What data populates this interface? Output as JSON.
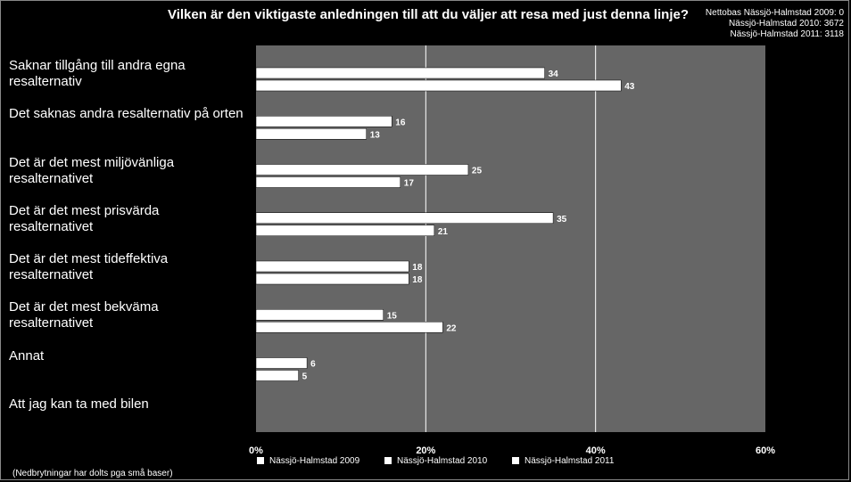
{
  "chart_data": {
    "type": "bar",
    "orientation": "horizontal",
    "title": "Vilken är den viktigaste anledningen till att du väljer att resa med just denna linje?",
    "categories": [
      "Saknar tillgång till andra egna resalternativ",
      "Det saknas andra resalternativ på orten",
      "Det är det mest miljövänliga resalternativet",
      "Det är det mest prisvärda resalternativet",
      "Det är det mest tideffektiva resalternativet",
      "Det är det mest bekväma resalternativet",
      "Annat",
      "Att jag kan ta med bilen"
    ],
    "series": [
      {
        "name": "Nässjö-Halmstad 2009",
        "values": [
          null,
          null,
          null,
          null,
          null,
          null,
          null,
          null
        ]
      },
      {
        "name": "Nässjö-Halmstad 2010",
        "values": [
          34,
          16,
          25,
          35,
          18,
          15,
          6,
          null
        ]
      },
      {
        "name": "Nässjö-Halmstad 2011",
        "values": [
          43,
          13,
          17,
          21,
          18,
          22,
          5,
          null
        ]
      }
    ],
    "xlim": [
      0,
      60
    ],
    "xticks": [
      0,
      20,
      40,
      60
    ],
    "xtick_labels": [
      "0%",
      "20%",
      "40%",
      "60%"
    ],
    "grid": true,
    "legend_position": "bottom",
    "bar_color": "#ffffff",
    "plot_background": "#666666"
  },
  "base_info": [
    "Nettobas  Nässjö-Halmstad 2009: 0",
    "Nässjö-Halmstad 2010: 3672",
    "Nässjö-Halmstad 2011: 3118"
  ],
  "footnote": "(Nedbrytningar har dolts pga små baser)"
}
